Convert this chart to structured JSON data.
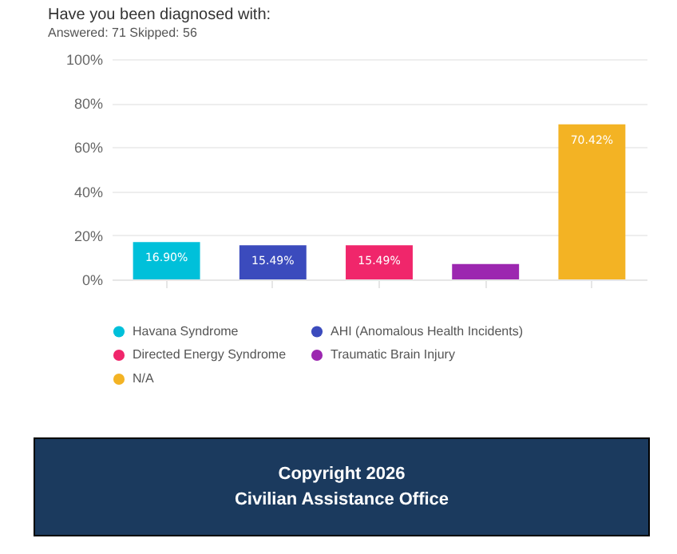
{
  "chart_data": {
    "type": "bar",
    "title": "Have you been diagnosed with:",
    "subtitle": "Answered: 71    Skipped: 56",
    "categories": [
      null,
      null,
      null,
      null,
      null
    ],
    "stacked": true,
    "series": [
      {
        "name": "Havana Syndrome",
        "color": "#00c0da",
        "values": [
          16.9,
          null,
          null,
          null,
          null
        ],
        "value_labels": [
          "16.90%",
          null,
          null,
          null,
          null
        ]
      },
      {
        "name": "AHI (Anomalous Health Incidents)",
        "color": "#3b4bbd",
        "values": [
          null,
          15.49,
          null,
          null,
          null
        ],
        "value_labels": [
          null,
          "15.49%",
          null,
          null,
          null
        ]
      },
      {
        "name": "Directed Energy Syndrome",
        "color": "#f0266b",
        "values": [
          null,
          null,
          15.49,
          null,
          null
        ],
        "value_labels": [
          null,
          null,
          "15.49%",
          null,
          null
        ]
      },
      {
        "name": "Traumatic Brain Injury",
        "color": "#9c27b0",
        "values": [
          null,
          null,
          null,
          7,
          null
        ]
      },
      {
        "name": "N/A",
        "color": "#f3b324",
        "values": [
          null,
          null,
          null,
          null,
          70.42
        ],
        "value_labels": [
          null,
          null,
          null,
          null,
          "70.42%"
        ]
      }
    ],
    "ylim": [
      0,
      100
    ],
    "yticks": [
      {
        "value": 0,
        "label": "0%"
      },
      {
        "value": 20,
        "label": "20%"
      },
      {
        "value": 40,
        "label": "40%"
      },
      {
        "value": 60,
        "label": "60%"
      },
      {
        "value": 80,
        "label": "80%"
      },
      {
        "value": 100,
        "label": "100%"
      }
    ],
    "grid": "y",
    "legend": "bottom",
    "tick_labels": "y",
    "annotations": [
      "Copyright 2026",
      "Civilian Assistance Office"
    ]
  }
}
